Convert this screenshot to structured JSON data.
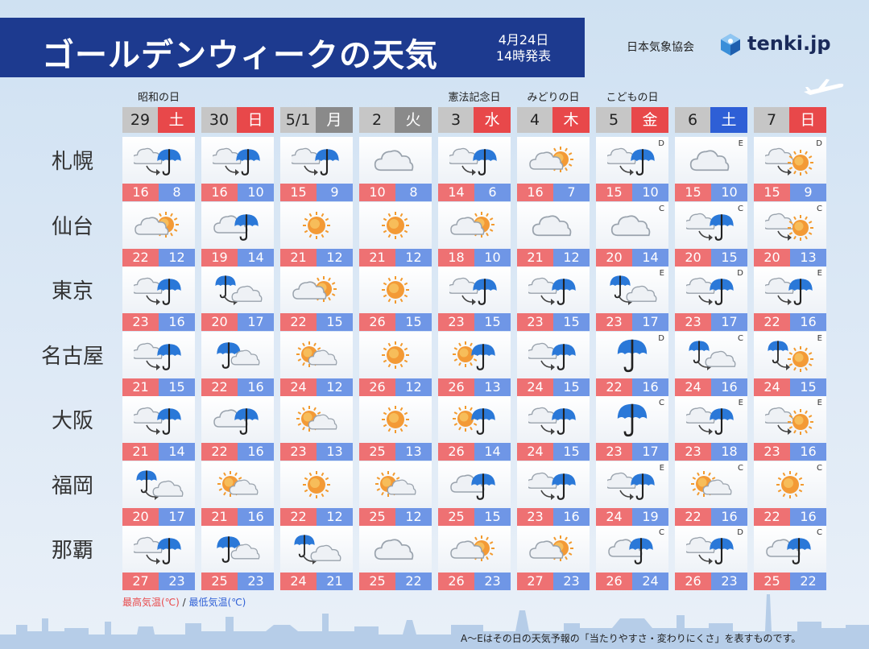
{
  "header": {
    "title": "ゴールデンウィークの天気",
    "date": "4月24日",
    "issued": "14時発表",
    "agency": "日本気象協会",
    "logo_text": "tenki.jp"
  },
  "days": [
    {
      "num": "29",
      "wd": "土",
      "color": "red",
      "holiday": "昭和の日"
    },
    {
      "num": "30",
      "wd": "日",
      "color": "red",
      "holiday": ""
    },
    {
      "num": "5/1",
      "wd": "月",
      "color": "gray",
      "holiday": ""
    },
    {
      "num": "2",
      "wd": "火",
      "color": "gray",
      "holiday": ""
    },
    {
      "num": "3",
      "wd": "水",
      "color": "red",
      "holiday": "憲法記念日"
    },
    {
      "num": "4",
      "wd": "木",
      "color": "red",
      "holiday": "みどりの日"
    },
    {
      "num": "5",
      "wd": "金",
      "color": "red",
      "holiday": "こどもの日"
    },
    {
      "num": "6",
      "wd": "土",
      "color": "blue",
      "holiday": ""
    },
    {
      "num": "7",
      "wd": "日",
      "color": "red",
      "holiday": ""
    }
  ],
  "cities": [
    {
      "name": "札幌",
      "cells": [
        {
          "icon": "cloud-then-rain",
          "rel": "",
          "hi": "16",
          "lo": "8"
        },
        {
          "icon": "cloud-then-rain",
          "rel": "",
          "hi": "16",
          "lo": "10"
        },
        {
          "icon": "cloud-then-rain",
          "rel": "",
          "hi": "15",
          "lo": "9"
        },
        {
          "icon": "cloud",
          "rel": "",
          "hi": "10",
          "lo": "8"
        },
        {
          "icon": "cloud-then-rain",
          "rel": "",
          "hi": "14",
          "lo": "6"
        },
        {
          "icon": "cloud-sun",
          "rel": "",
          "hi": "16",
          "lo": "7"
        },
        {
          "icon": "cloud-then-rain",
          "rel": "D",
          "hi": "15",
          "lo": "10"
        },
        {
          "icon": "cloud",
          "rel": "E",
          "hi": "15",
          "lo": "10"
        },
        {
          "icon": "cloud-then-sun",
          "rel": "D",
          "hi": "15",
          "lo": "9"
        }
      ]
    },
    {
      "name": "仙台",
      "cells": [
        {
          "icon": "cloud-sun",
          "rel": "",
          "hi": "22",
          "lo": "12"
        },
        {
          "icon": "cloud-rain",
          "rel": "",
          "hi": "19",
          "lo": "14"
        },
        {
          "icon": "sun",
          "rel": "",
          "hi": "21",
          "lo": "12"
        },
        {
          "icon": "sun",
          "rel": "",
          "hi": "21",
          "lo": "12"
        },
        {
          "icon": "cloud-sun",
          "rel": "",
          "hi": "18",
          "lo": "10"
        },
        {
          "icon": "cloud",
          "rel": "",
          "hi": "21",
          "lo": "12"
        },
        {
          "icon": "cloud",
          "rel": "C",
          "hi": "20",
          "lo": "14"
        },
        {
          "icon": "cloud-then-rain",
          "rel": "C",
          "hi": "20",
          "lo": "15"
        },
        {
          "icon": "cloud-then-sun",
          "rel": "C",
          "hi": "20",
          "lo": "13"
        }
      ]
    },
    {
      "name": "東京",
      "cells": [
        {
          "icon": "cloud-then-rain",
          "rel": "",
          "hi": "23",
          "lo": "16"
        },
        {
          "icon": "rain-then-cloud",
          "rel": "",
          "hi": "20",
          "lo": "17"
        },
        {
          "icon": "cloud-sun",
          "rel": "",
          "hi": "22",
          "lo": "15"
        },
        {
          "icon": "sun",
          "rel": "",
          "hi": "26",
          "lo": "15"
        },
        {
          "icon": "cloud-then-rain",
          "rel": "",
          "hi": "23",
          "lo": "15"
        },
        {
          "icon": "cloud-then-rain",
          "rel": "",
          "hi": "23",
          "lo": "15"
        },
        {
          "icon": "rain-then-cloud",
          "rel": "E",
          "hi": "23",
          "lo": "17"
        },
        {
          "icon": "cloud-then-rain",
          "rel": "D",
          "hi": "23",
          "lo": "17"
        },
        {
          "icon": "cloud-then-rain",
          "rel": "E",
          "hi": "22",
          "lo": "16"
        }
      ]
    },
    {
      "name": "名古屋",
      "cells": [
        {
          "icon": "cloud-then-rain",
          "rel": "",
          "hi": "21",
          "lo": "15"
        },
        {
          "icon": "rain-cloud",
          "rel": "",
          "hi": "22",
          "lo": "16"
        },
        {
          "icon": "sun-cloud",
          "rel": "",
          "hi": "24",
          "lo": "12"
        },
        {
          "icon": "sun",
          "rel": "",
          "hi": "26",
          "lo": "12"
        },
        {
          "icon": "sun-rain",
          "rel": "",
          "hi": "26",
          "lo": "13"
        },
        {
          "icon": "cloud-then-rain",
          "rel": "",
          "hi": "24",
          "lo": "15"
        },
        {
          "icon": "rain",
          "rel": "D",
          "hi": "22",
          "lo": "16"
        },
        {
          "icon": "rain-then-cloud",
          "rel": "C",
          "hi": "24",
          "lo": "16"
        },
        {
          "icon": "rain-then-sun",
          "rel": "E",
          "hi": "24",
          "lo": "15"
        }
      ]
    },
    {
      "name": "大阪",
      "cells": [
        {
          "icon": "cloud-then-rain",
          "rel": "",
          "hi": "21",
          "lo": "14"
        },
        {
          "icon": "cloud-rain",
          "rel": "",
          "hi": "22",
          "lo": "16"
        },
        {
          "icon": "sun-cloud",
          "rel": "",
          "hi": "23",
          "lo": "13"
        },
        {
          "icon": "sun",
          "rel": "",
          "hi": "25",
          "lo": "13"
        },
        {
          "icon": "sun-rain",
          "rel": "",
          "hi": "26",
          "lo": "14"
        },
        {
          "icon": "cloud-then-rain",
          "rel": "",
          "hi": "24",
          "lo": "15"
        },
        {
          "icon": "rain",
          "rel": "C",
          "hi": "23",
          "lo": "17"
        },
        {
          "icon": "cloud-then-rain",
          "rel": "E",
          "hi": "23",
          "lo": "18"
        },
        {
          "icon": "cloud-then-sun",
          "rel": "E",
          "hi": "23",
          "lo": "16"
        }
      ]
    },
    {
      "name": "福岡",
      "cells": [
        {
          "icon": "rain-then-cloud",
          "rel": "",
          "hi": "20",
          "lo": "17"
        },
        {
          "icon": "sun-cloud",
          "rel": "",
          "hi": "21",
          "lo": "16"
        },
        {
          "icon": "sun",
          "rel": "",
          "hi": "22",
          "lo": "12"
        },
        {
          "icon": "sun-cloud",
          "rel": "",
          "hi": "25",
          "lo": "12"
        },
        {
          "icon": "cloud-rain",
          "rel": "",
          "hi": "25",
          "lo": "15"
        },
        {
          "icon": "cloud-then-rain",
          "rel": "",
          "hi": "23",
          "lo": "16"
        },
        {
          "icon": "cloud-then-rain",
          "rel": "E",
          "hi": "24",
          "lo": "19"
        },
        {
          "icon": "sun-cloud",
          "rel": "C",
          "hi": "22",
          "lo": "16"
        },
        {
          "icon": "sun",
          "rel": "C",
          "hi": "22",
          "lo": "16"
        }
      ]
    },
    {
      "name": "那覇",
      "cells": [
        {
          "icon": "cloud-then-rain",
          "rel": "",
          "hi": "27",
          "lo": "23"
        },
        {
          "icon": "rain-cloud",
          "rel": "",
          "hi": "25",
          "lo": "23"
        },
        {
          "icon": "rain-then-cloud",
          "rel": "",
          "hi": "24",
          "lo": "21"
        },
        {
          "icon": "cloud",
          "rel": "",
          "hi": "25",
          "lo": "22"
        },
        {
          "icon": "cloud-sun",
          "rel": "",
          "hi": "26",
          "lo": "23"
        },
        {
          "icon": "cloud-sun",
          "rel": "",
          "hi": "27",
          "lo": "23"
        },
        {
          "icon": "cloud-rain",
          "rel": "C",
          "hi": "26",
          "lo": "24"
        },
        {
          "icon": "cloud-then-rain",
          "rel": "D",
          "hi": "26",
          "lo": "23"
        },
        {
          "icon": "cloud-rain",
          "rel": "C",
          "hi": "25",
          "lo": "22"
        }
      ]
    }
  ],
  "legend": {
    "high": "最高気温(℃)",
    "sep": " / ",
    "low": "最低気温(℃)"
  },
  "footnote": "A〜Eはその日の天気予報の「当たりやすさ・変わりにくさ」を表すものです。",
  "colors": {
    "title_bg": "#1d3a8f",
    "high": "#ee7173",
    "low": "#6f96e6",
    "sat": "#2e5fd6",
    "holiday": "#e8484a",
    "weekday": "#8a8a8a"
  }
}
